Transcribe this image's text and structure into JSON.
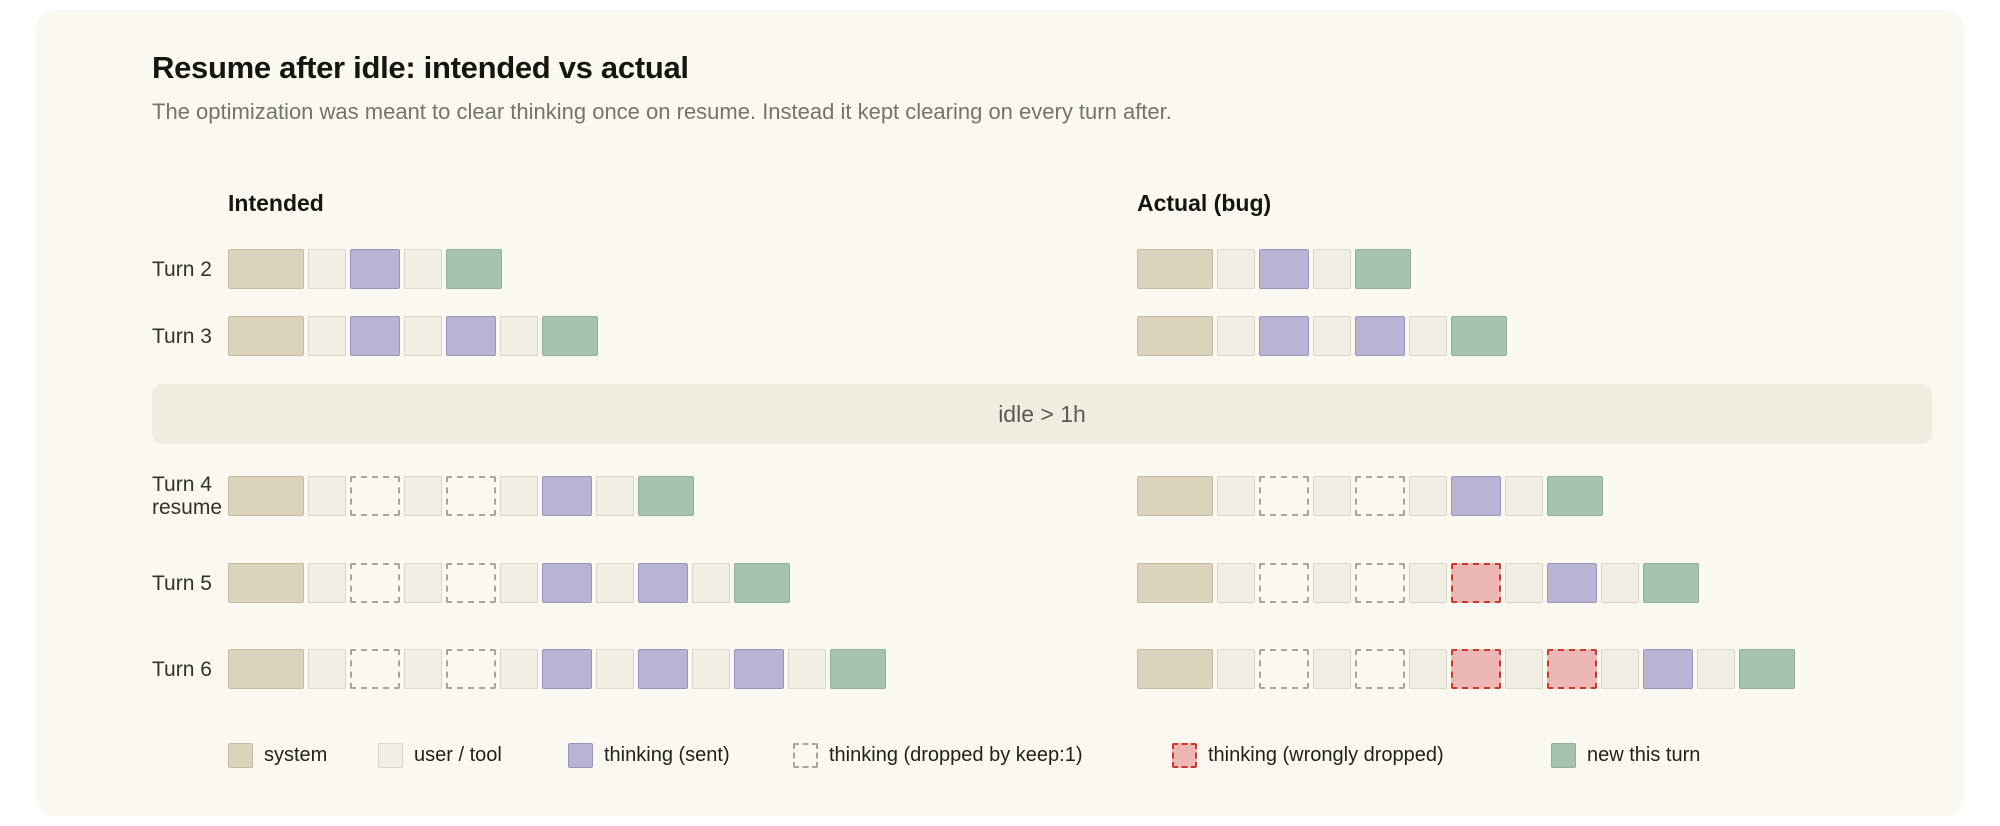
{
  "title": "Resume after idle: intended vs actual",
  "subtitle": "The optimization was meant to clear thinking once on resume. Instead it kept clearing on every turn after.",
  "columns": {
    "intended": "Intended",
    "actual": "Actual (bug)"
  },
  "idle_banner": "idle > 1h",
  "palette": {
    "page_bg": "#ffffff",
    "canvas_bg": "#faf8f1",
    "banner_bg": "#efede0",
    "system": {
      "fill": "#dcd3bc",
      "border": "#c6bca1"
    },
    "user": {
      "fill": "#f1efe3",
      "border": "#dad7c7"
    },
    "thinking": {
      "fill": "#b8b5d4",
      "border": "#9996bd"
    },
    "dropped": {
      "fill": "transparent",
      "border": "#a8a59a"
    },
    "wrong": {
      "fill": "#ecb7b4",
      "border": "#c53b2a"
    },
    "new": {
      "fill": "#a6c3b1",
      "border": "#8fae9b"
    }
  },
  "rows": [
    {
      "label": "Turn 2",
      "sublabel": "",
      "intended": [
        "system",
        "user",
        "thinking",
        "user",
        "new"
      ],
      "actual": [
        "system",
        "user",
        "thinking",
        "user",
        "new"
      ]
    },
    {
      "label": "Turn 3",
      "sublabel": "",
      "intended": [
        "system",
        "user",
        "thinking",
        "user",
        "thinking",
        "user",
        "new"
      ],
      "actual": [
        "system",
        "user",
        "thinking",
        "user",
        "thinking",
        "user",
        "new"
      ]
    },
    {
      "label": "Turn 4",
      "sublabel": "resume",
      "intended": [
        "system",
        "user",
        "dropped",
        "user",
        "dropped",
        "user",
        "thinking",
        "user",
        "new"
      ],
      "actual": [
        "system",
        "user",
        "dropped",
        "user",
        "dropped",
        "user",
        "thinking",
        "user",
        "new"
      ]
    },
    {
      "label": "Turn 5",
      "sublabel": "",
      "intended": [
        "system",
        "user",
        "dropped",
        "user",
        "dropped",
        "user",
        "thinking",
        "user",
        "thinking",
        "user",
        "new"
      ],
      "actual": [
        "system",
        "user",
        "dropped",
        "user",
        "dropped",
        "user",
        "wrong",
        "user",
        "thinking",
        "user",
        "new"
      ]
    },
    {
      "label": "Turn 6",
      "sublabel": "",
      "intended": [
        "system",
        "user",
        "dropped",
        "user",
        "dropped",
        "user",
        "thinking",
        "user",
        "thinking",
        "user",
        "thinking",
        "user",
        "new"
      ],
      "actual": [
        "system",
        "user",
        "dropped",
        "user",
        "dropped",
        "user",
        "wrong",
        "user",
        "wrong",
        "user",
        "thinking",
        "user",
        "new"
      ]
    }
  ],
  "legend": [
    {
      "type": "system",
      "label": "system"
    },
    {
      "type": "user",
      "label": "user / tool"
    },
    {
      "type": "thinking",
      "label": "thinking (sent)"
    },
    {
      "type": "dropped",
      "label": "thinking (dropped by keep:1)"
    },
    {
      "type": "wrong",
      "label": "thinking (wrongly dropped)"
    },
    {
      "type": "new",
      "label": "new this turn"
    }
  ]
}
